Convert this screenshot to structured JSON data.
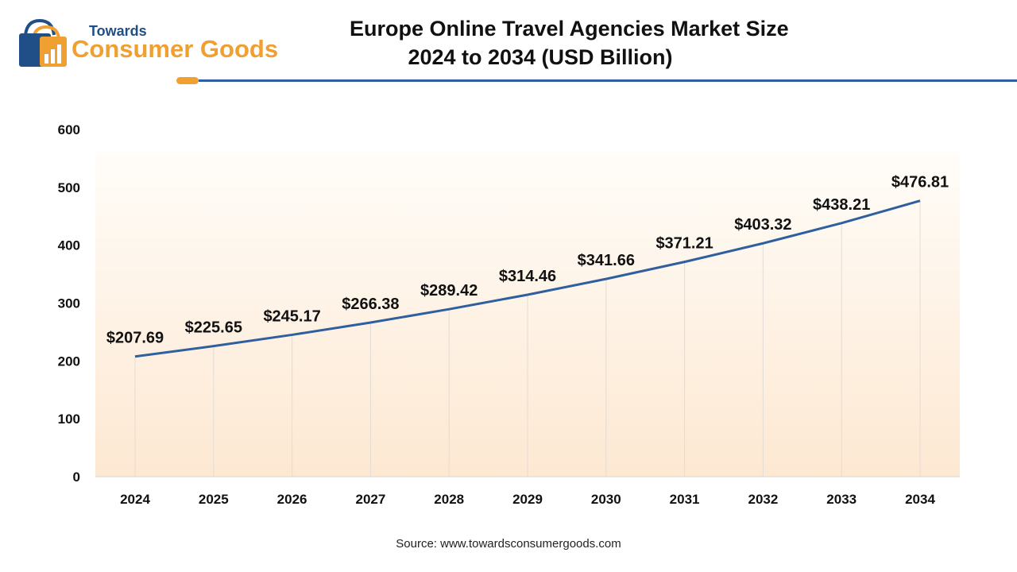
{
  "logo": {
    "top_text": "Towards",
    "main_text": "Consumer Goods",
    "icon": "shopping-bag-icon"
  },
  "header": {
    "title_line1": "Europe Online Travel Agencies Market Size",
    "title_line2": "2024 to 2034 (USD Billion)"
  },
  "source": "Source: www.towardsconsumergoods.com",
  "colors": {
    "line": "#2f5f9e",
    "rule": "#2f5f9e",
    "accent": "#f0a030",
    "brand_blue": "#1f4f86"
  },
  "chart_data": {
    "type": "line",
    "title": "Europe Online Travel Agencies Market Size 2024 to 2034 (USD Billion)",
    "xlabel": "",
    "ylabel": "",
    "categories": [
      "2024",
      "2025",
      "2026",
      "2027",
      "2028",
      "2029",
      "2030",
      "2031",
      "2032",
      "2033",
      "2034"
    ],
    "values": [
      207.69,
      225.65,
      245.17,
      266.38,
      289.42,
      314.46,
      341.66,
      371.21,
      403.32,
      438.21,
      476.81
    ],
    "data_labels": [
      "$207.69",
      "$225.65",
      "$245.17",
      "$266.38",
      "$289.42",
      "$314.46",
      "$341.66",
      "$371.21",
      "$403.32",
      "$438.21",
      "$476.81"
    ],
    "ylim": [
      0,
      600
    ],
    "yticks": [
      "0",
      "100",
      "200",
      "300",
      "400",
      "500",
      "600"
    ],
    "grid": false,
    "legend": "none"
  }
}
